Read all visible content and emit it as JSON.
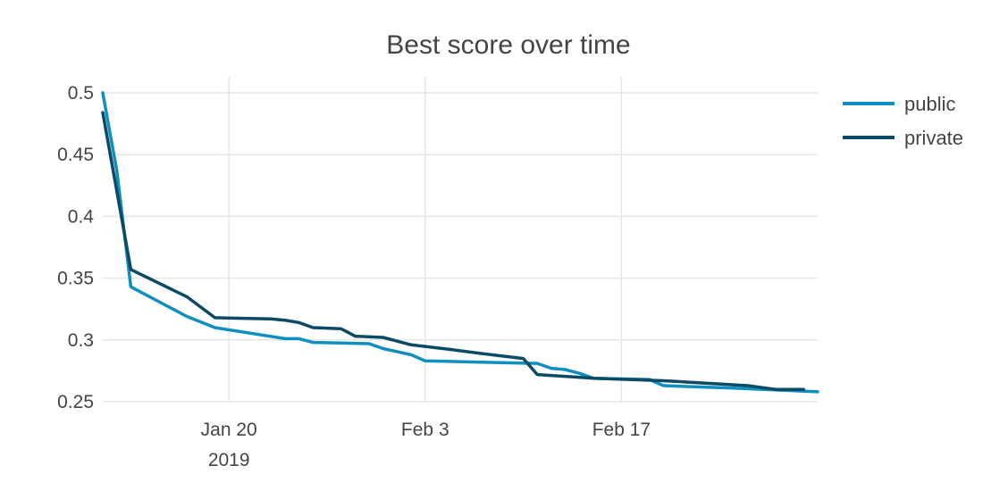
{
  "chart_data": {
    "type": "line",
    "title": "Best score over time",
    "xlabel": "",
    "ylabel": "",
    "x_range": [
      "2019-01-11",
      "2019-03-03"
    ],
    "ylim": [
      0.25,
      0.5
    ],
    "grid": true,
    "legend_position": "top-right, outside plot",
    "y_ticks": [
      0.25,
      0.3,
      0.35,
      0.4,
      0.45,
      0.5
    ],
    "y_tick_labels": [
      "0.25",
      "0.3",
      "0.35",
      "0.4",
      "0.45",
      "0.5"
    ],
    "x_ticks": [
      {
        "date": "2019-01-20",
        "label": "Jan 20",
        "sublabel": "2019"
      },
      {
        "date": "2019-02-03",
        "label": "Feb 3",
        "sublabel": ""
      },
      {
        "date": "2019-02-17",
        "label": "Feb 17",
        "sublabel": ""
      }
    ],
    "series": [
      {
        "name": "public",
        "color": "#0e8fc0",
        "points": [
          [
            "2019-01-11",
            0.5
          ],
          [
            "2019-01-12",
            0.437
          ],
          [
            "2019-01-13",
            0.343
          ],
          [
            "2019-01-17",
            0.319
          ],
          [
            "2019-01-19",
            0.31
          ],
          [
            "2019-01-24",
            0.301
          ],
          [
            "2019-01-25",
            0.301
          ],
          [
            "2019-01-26",
            0.298
          ],
          [
            "2019-01-30",
            0.297
          ],
          [
            "2019-01-31",
            0.293
          ],
          [
            "2019-02-02",
            0.288
          ],
          [
            "2019-02-03",
            0.283
          ],
          [
            "2019-02-07",
            0.282
          ],
          [
            "2019-02-11",
            0.281
          ],
          [
            "2019-02-12",
            0.277
          ],
          [
            "2019-02-13",
            0.276
          ],
          [
            "2019-02-14",
            0.273
          ],
          [
            "2019-02-15",
            0.269
          ],
          [
            "2019-02-19",
            0.268
          ],
          [
            "2019-02-20",
            0.263
          ],
          [
            "2019-02-25",
            0.261
          ],
          [
            "2019-03-01",
            0.259
          ],
          [
            "2019-03-03",
            0.258
          ]
        ]
      },
      {
        "name": "private",
        "color": "#0b4a64",
        "points": [
          [
            "2019-01-11",
            0.484
          ],
          [
            "2019-01-13",
            0.357
          ],
          [
            "2019-01-17",
            0.335
          ],
          [
            "2019-01-19",
            0.318
          ],
          [
            "2019-01-23",
            0.317
          ],
          [
            "2019-01-24",
            0.316
          ],
          [
            "2019-01-25",
            0.314
          ],
          [
            "2019-01-26",
            0.31
          ],
          [
            "2019-01-28",
            0.309
          ],
          [
            "2019-01-29",
            0.303
          ],
          [
            "2019-01-31",
            0.302
          ],
          [
            "2019-02-02",
            0.296
          ],
          [
            "2019-02-05",
            0.292
          ],
          [
            "2019-02-07",
            0.289
          ],
          [
            "2019-02-10",
            0.285
          ],
          [
            "2019-02-11",
            0.272
          ],
          [
            "2019-02-15",
            0.269
          ],
          [
            "2019-02-20",
            0.267
          ],
          [
            "2019-02-23",
            0.265
          ],
          [
            "2019-02-26",
            0.263
          ],
          [
            "2019-02-28",
            0.26
          ],
          [
            "2019-03-02",
            0.26
          ]
        ]
      }
    ]
  }
}
